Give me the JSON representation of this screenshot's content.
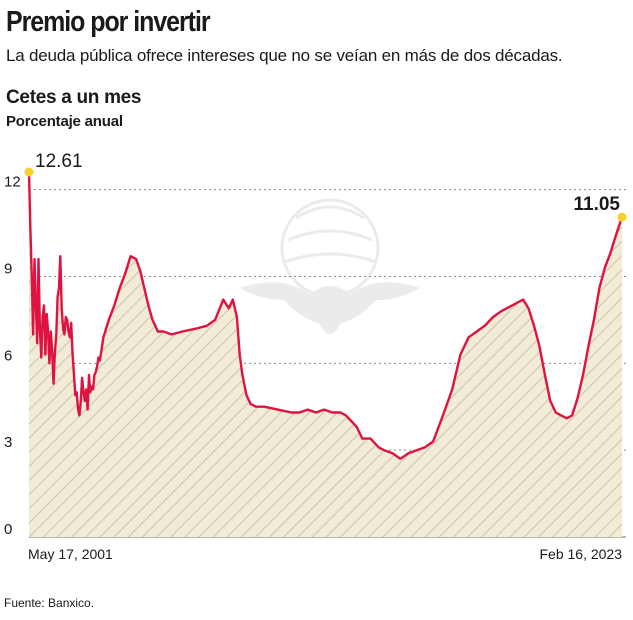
{
  "header": {
    "title": "Premio por invertir",
    "subtitle": "La deuda pública ofrece intereses que no se veían en más de dos décadas."
  },
  "source": "Fuente: Banxico.",
  "colors": {
    "line": "#e0123f",
    "fill": "#f2ebd6",
    "hatch": "#b9b29e",
    "grid": "#8c8c8c",
    "marker": "#f5d12a"
  },
  "chart_data": {
    "type": "area",
    "title": "Cetes a un mes",
    "ylabel": "Porcentaje anual",
    "ylim": [
      0,
      12.61
    ],
    "yticks": [
      "12",
      "9",
      "6",
      "3",
      "0"
    ],
    "x_start_label": "May 17, 2001",
    "x_end_label": "Feb 16, 2023",
    "x_range": [
      2001.37,
      2023.13
    ],
    "grid": "horizontal dotted",
    "annotations": [
      {
        "label": "12.61",
        "x": 2001.37,
        "y": 12.61
      },
      {
        "label": "11.05",
        "x": 2023.13,
        "y": 11.05
      }
    ],
    "series": [
      {
        "x": [
          2001.37,
          2001.42,
          2001.47,
          2001.52,
          2001.57,
          2001.62,
          2001.67,
          2001.72,
          2001.77,
          2001.82,
          2001.87,
          2001.92,
          2001.97,
          2002.02,
          2002.07,
          2002.12,
          2002.17,
          2002.22,
          2002.27,
          2002.32,
          2002.37,
          2002.42,
          2002.47,
          2002.52,
          2002.57,
          2002.62,
          2002.67,
          2002.72,
          2002.77,
          2002.82,
          2002.87,
          2002.92,
          2002.97,
          2003.02,
          2003.07,
          2003.12,
          2003.17,
          2003.22,
          2003.27,
          2003.32,
          2003.37,
          2003.42,
          2003.47,
          2003.52,
          2003.57,
          2003.62,
          2003.67,
          2003.72,
          2003.77,
          2003.82,
          2003.87,
          2003.92,
          2003.97,
          2004.1,
          2004.3,
          2004.5,
          2004.7,
          2004.9,
          2005.1,
          2005.3,
          2005.45,
          2005.6,
          2005.75,
          2005.9,
          2006.1,
          2006.3,
          2006.6,
          2007.0,
          2007.5,
          2007.9,
          2008.2,
          2008.5,
          2008.7,
          2008.85,
          2009.0,
          2009.1,
          2009.2,
          2009.35,
          2009.5,
          2009.7,
          2010.0,
          2010.5,
          2011.0,
          2011.3,
          2011.6,
          2011.9,
          2012.2,
          2012.5,
          2012.8,
          2013.0,
          2013.2,
          2013.4,
          2013.6,
          2013.9,
          2014.2,
          2014.4,
          2014.7,
          2015.0,
          2015.3,
          2015.6,
          2015.9,
          2016.2,
          2016.4,
          2016.6,
          2016.9,
          2017.2,
          2017.5,
          2017.8,
          2018.1,
          2018.4,
          2018.7,
          2018.9,
          2019.1,
          2019.3,
          2019.5,
          2019.7,
          2019.9,
          2020.1,
          2020.3,
          2020.5,
          2020.7,
          2020.9,
          2021.1,
          2021.3,
          2021.5,
          2021.7,
          2021.9,
          2022.1,
          2022.3,
          2022.5,
          2022.7,
          2022.9,
          2023.13
        ],
        "y": [
          12.61,
          10.6,
          9.1,
          7.0,
          9.6,
          8.1,
          6.7,
          9.6,
          7.2,
          6.2,
          7.6,
          8.0,
          6.3,
          7.7,
          7.1,
          6.0,
          7.1,
          6.4,
          5.3,
          6.4,
          7.0,
          8.3,
          8.6,
          9.7,
          7.9,
          7.2,
          7.0,
          7.6,
          7.5,
          7.1,
          6.9,
          7.4,
          6.3,
          5.6,
          4.9,
          5.0,
          4.4,
          4.2,
          4.7,
          5.5,
          5.0,
          4.7,
          5.1,
          4.4,
          5.6,
          5.0,
          5.2,
          5.1,
          5.6,
          5.7,
          5.9,
          6.2,
          6.1,
          6.9,
          7.5,
          8.0,
          8.6,
          9.1,
          9.7,
          9.6,
          9.2,
          8.6,
          8.0,
          7.5,
          7.1,
          7.1,
          7.0,
          7.1,
          7.2,
          7.3,
          7.5,
          8.2,
          7.9,
          8.2,
          7.6,
          6.3,
          5.6,
          4.9,
          4.6,
          4.5,
          4.5,
          4.4,
          4.3,
          4.3,
          4.4,
          4.3,
          4.4,
          4.3,
          4.3,
          4.2,
          4.0,
          3.8,
          3.4,
          3.4,
          3.1,
          3.0,
          2.9,
          2.7,
          2.9,
          3.0,
          3.1,
          3.3,
          3.8,
          4.3,
          5.1,
          6.3,
          6.9,
          7.1,
          7.3,
          7.6,
          7.8,
          7.9,
          8.0,
          8.1,
          8.2,
          7.9,
          7.3,
          6.6,
          5.6,
          4.7,
          4.3,
          4.2,
          4.1,
          4.2,
          4.8,
          5.6,
          6.6,
          7.5,
          8.6,
          9.3,
          9.8,
          10.4,
          11.05
        ]
      }
    ]
  }
}
